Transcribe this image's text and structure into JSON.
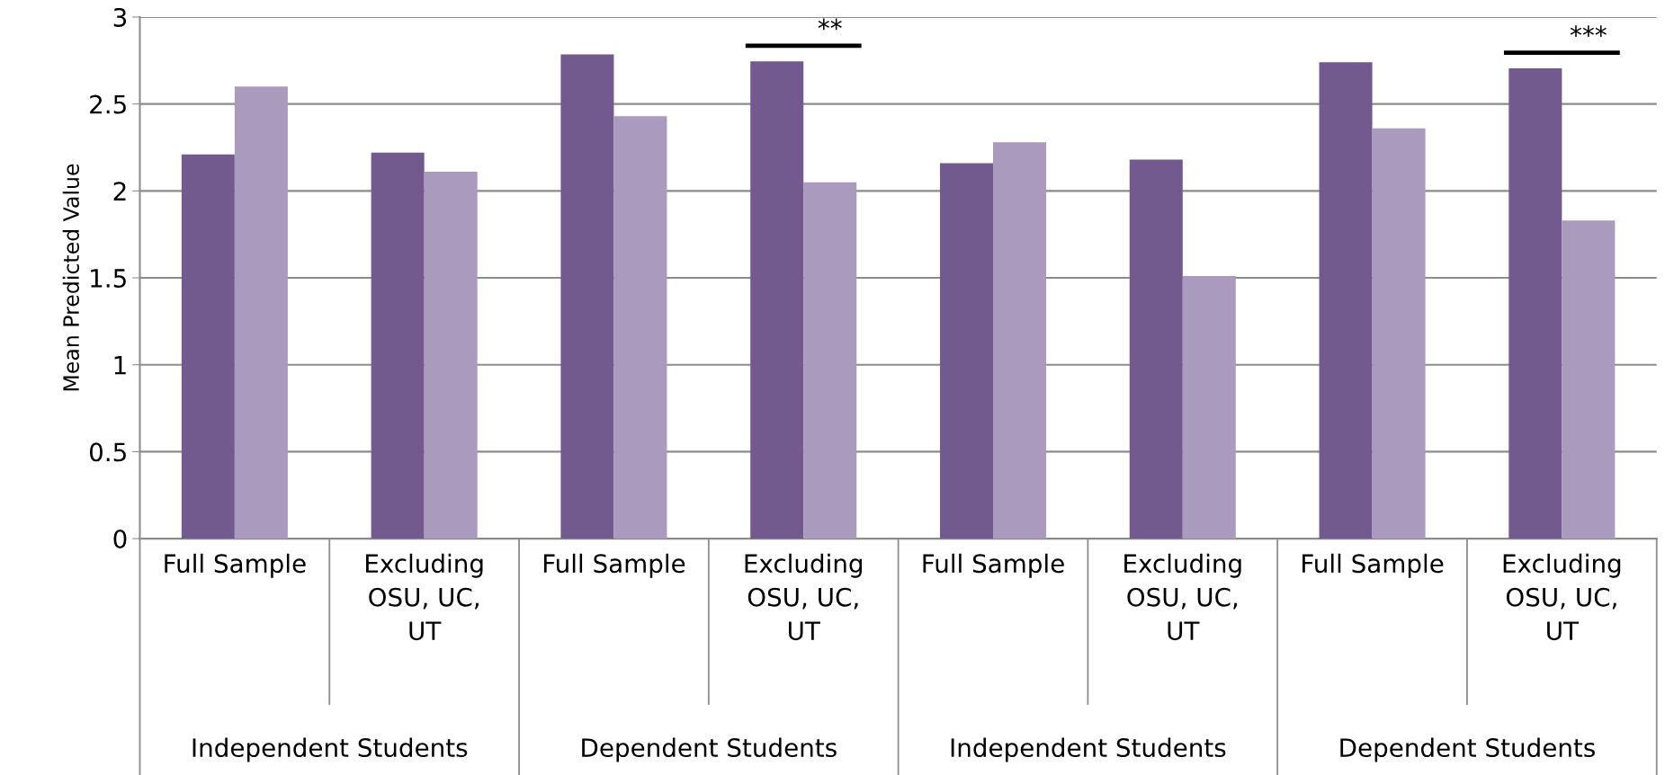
{
  "chart_data": {
    "type": "bar",
    "ylabel": "Mean Predicted Value",
    "categories": [
      "Full Sample",
      "Excluding OSU, UC, UT",
      "Full Sample",
      "Excluding OSU, UC, UT",
      "Full Sample",
      "Excluding OSU, UC, UT",
      "Full Sample",
      "Excluding OSU, UC, UT"
    ],
    "series": [
      {
        "color": "#72598e",
        "values": [
          2.21,
          2.22,
          2.785,
          2.745,
          2.16,
          2.18,
          2.74,
          2.705
        ]
      },
      {
        "color": "#a99abe",
        "values": [
          2.6,
          2.11,
          2.43,
          2.05,
          2.28,
          1.51,
          2.36,
          1.83
        ]
      }
    ],
    "annotations": [
      "Independent Students",
      "Dependent Students",
      "Independent Students",
      "Dependent Students",
      "**",
      "***"
    ],
    "ylim": [
      0,
      3
    ],
    "yticks": [
      0,
      0.5,
      1,
      1.5,
      2,
      2.5,
      3
    ],
    "grid": "y"
  }
}
